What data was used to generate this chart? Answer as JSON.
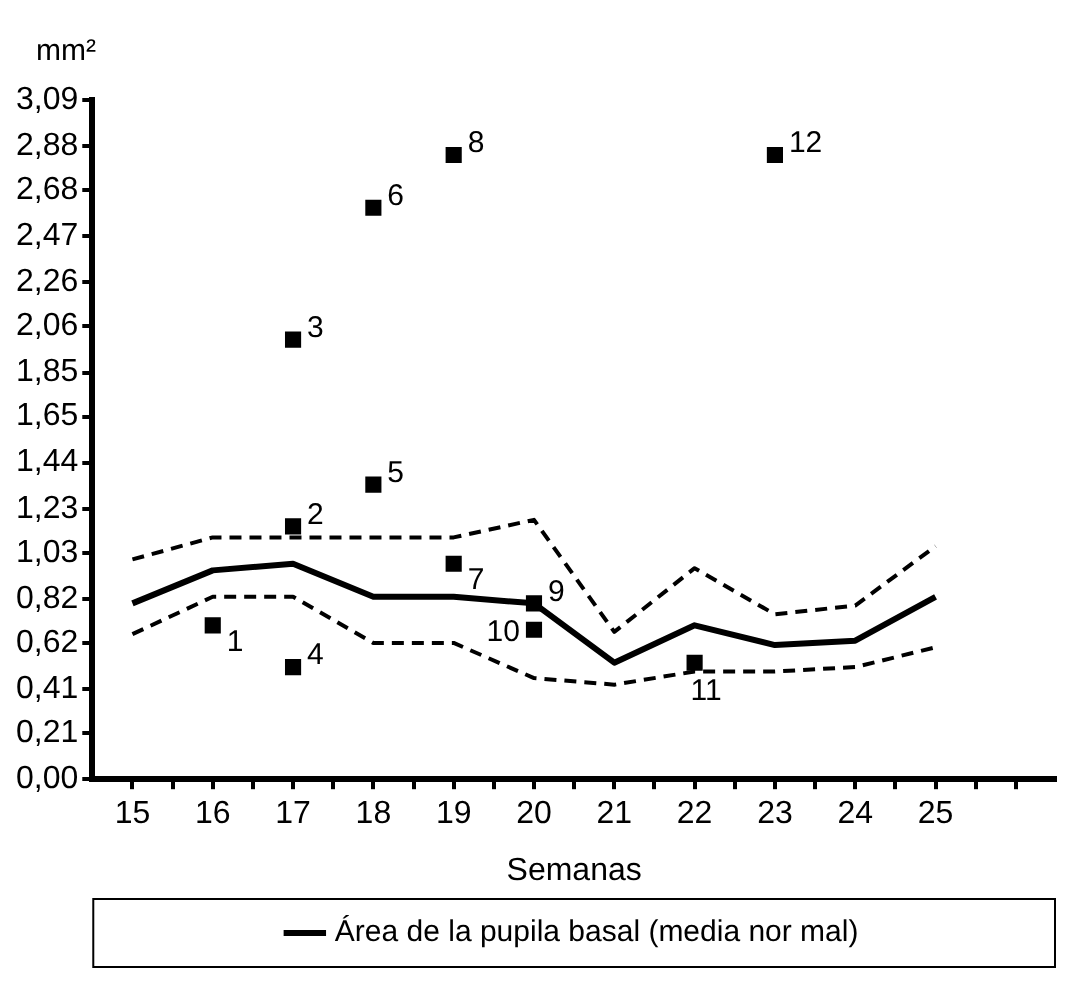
{
  "chart_data": {
    "type": "line",
    "xlabel": "Semanas",
    "ylabel": "mm²",
    "legend": "bottom",
    "grid": false,
    "x": [
      15,
      16,
      17,
      18,
      19,
      20,
      21,
      22,
      23,
      24,
      25
    ],
    "xlim": [
      14.5,
      26.5
    ],
    "xticks": [
      15,
      {
        "value": 15.5,
        "label": null
      },
      16,
      {
        "value": 16.5,
        "label": null
      },
      17,
      {
        "value": 17.5,
        "label": null
      },
      18,
      {
        "value": 18.5,
        "label": null
      },
      19,
      {
        "value": 19.5,
        "label": null
      },
      20,
      {
        "value": 20.5,
        "label": null
      },
      21,
      {
        "value": 21.5,
        "label": null
      },
      22,
      {
        "value": 22.5,
        "label": null
      },
      23,
      {
        "value": 23.5,
        "label": null
      },
      24,
      {
        "value": 24.5,
        "label": null
      },
      25,
      {
        "value": 25.5,
        "label": null
      },
      {
        "value": 26,
        "label": null
      }
    ],
    "ylim": [
      0,
      3.09
    ],
    "yticks": [
      {
        "value": 0,
        "label": "0,00"
      },
      {
        "value": 0.21,
        "label": "0,21"
      },
      {
        "value": 0.41,
        "label": "0,41"
      },
      {
        "value": 0.62,
        "label": "0,62"
      },
      {
        "value": 0.82,
        "label": "0,82"
      },
      {
        "value": 1.03,
        "label": "1,03"
      },
      {
        "value": 1.23,
        "label": "1,23"
      },
      {
        "value": 1.44,
        "label": "1,44"
      },
      {
        "value": 1.65,
        "label": "1,65"
      },
      {
        "value": 1.85,
        "label": "1,85"
      },
      {
        "value": 2.06,
        "label": "2,06"
      },
      {
        "value": 2.26,
        "label": "2,26"
      },
      {
        "value": 2.47,
        "label": "2,47"
      },
      {
        "value": 2.68,
        "label": "2,68"
      },
      {
        "value": 2.88,
        "label": "2,88"
      },
      {
        "value": 3.09,
        "label": "3,09"
      }
    ],
    "series": [
      {
        "name": "Área de la pupila basal (media nor mal)",
        "color": "#000000",
        "line_style": "solid",
        "marker": "none",
        "values": [
          0.8,
          0.95,
          0.98,
          0.83,
          0.83,
          0.8,
          0.53,
          0.7,
          0.61,
          0.63,
          0.83
        ]
      },
      {
        "color": "#000000",
        "line_style": "dashed",
        "marker": "none",
        "values": [
          1.0,
          1.1,
          1.1,
          1.1,
          1.1,
          1.18,
          0.67,
          0.96,
          0.75,
          0.79,
          1.06
        ]
      },
      {
        "color": "#000000",
        "line_style": "dashed",
        "marker": "none",
        "values": [
          0.66,
          0.83,
          0.83,
          0.62,
          0.62,
          0.46,
          0.43,
          0.49,
          0.49,
          0.51,
          0.6
        ]
      },
      {
        "type": "scatter",
        "color": "#000000",
        "marker": "square",
        "x": [
          16,
          17,
          17,
          17,
          18,
          18,
          19,
          19,
          20,
          20,
          22,
          23
        ],
        "values": [
          0.7,
          1.15,
          2.0,
          0.51,
          1.34,
          2.6,
          0.98,
          2.84,
          0.8,
          0.68,
          0.53,
          2.84
        ]
      }
    ],
    "annotations": [
      {
        "text": "1",
        "x": 16,
        "y": 0.7
      },
      {
        "text": "2",
        "x": 17,
        "y": 1.15
      },
      {
        "text": "3",
        "x": 17,
        "y": 2.0
      },
      {
        "text": "4",
        "x": 17,
        "y": 0.51
      },
      {
        "text": "5",
        "x": 18,
        "y": 1.34
      },
      {
        "text": "6",
        "x": 18,
        "y": 2.6
      },
      {
        "text": "7",
        "x": 19,
        "y": 0.98
      },
      {
        "text": "8",
        "x": 19,
        "y": 2.84
      },
      {
        "text": "9",
        "x": 20,
        "y": 0.8
      },
      {
        "text": "10",
        "x": 20,
        "y": 0.68
      },
      {
        "text": "11",
        "x": 22,
        "y": 0.53
      },
      {
        "text": "12",
        "x": 23,
        "y": 2.84
      }
    ]
  }
}
